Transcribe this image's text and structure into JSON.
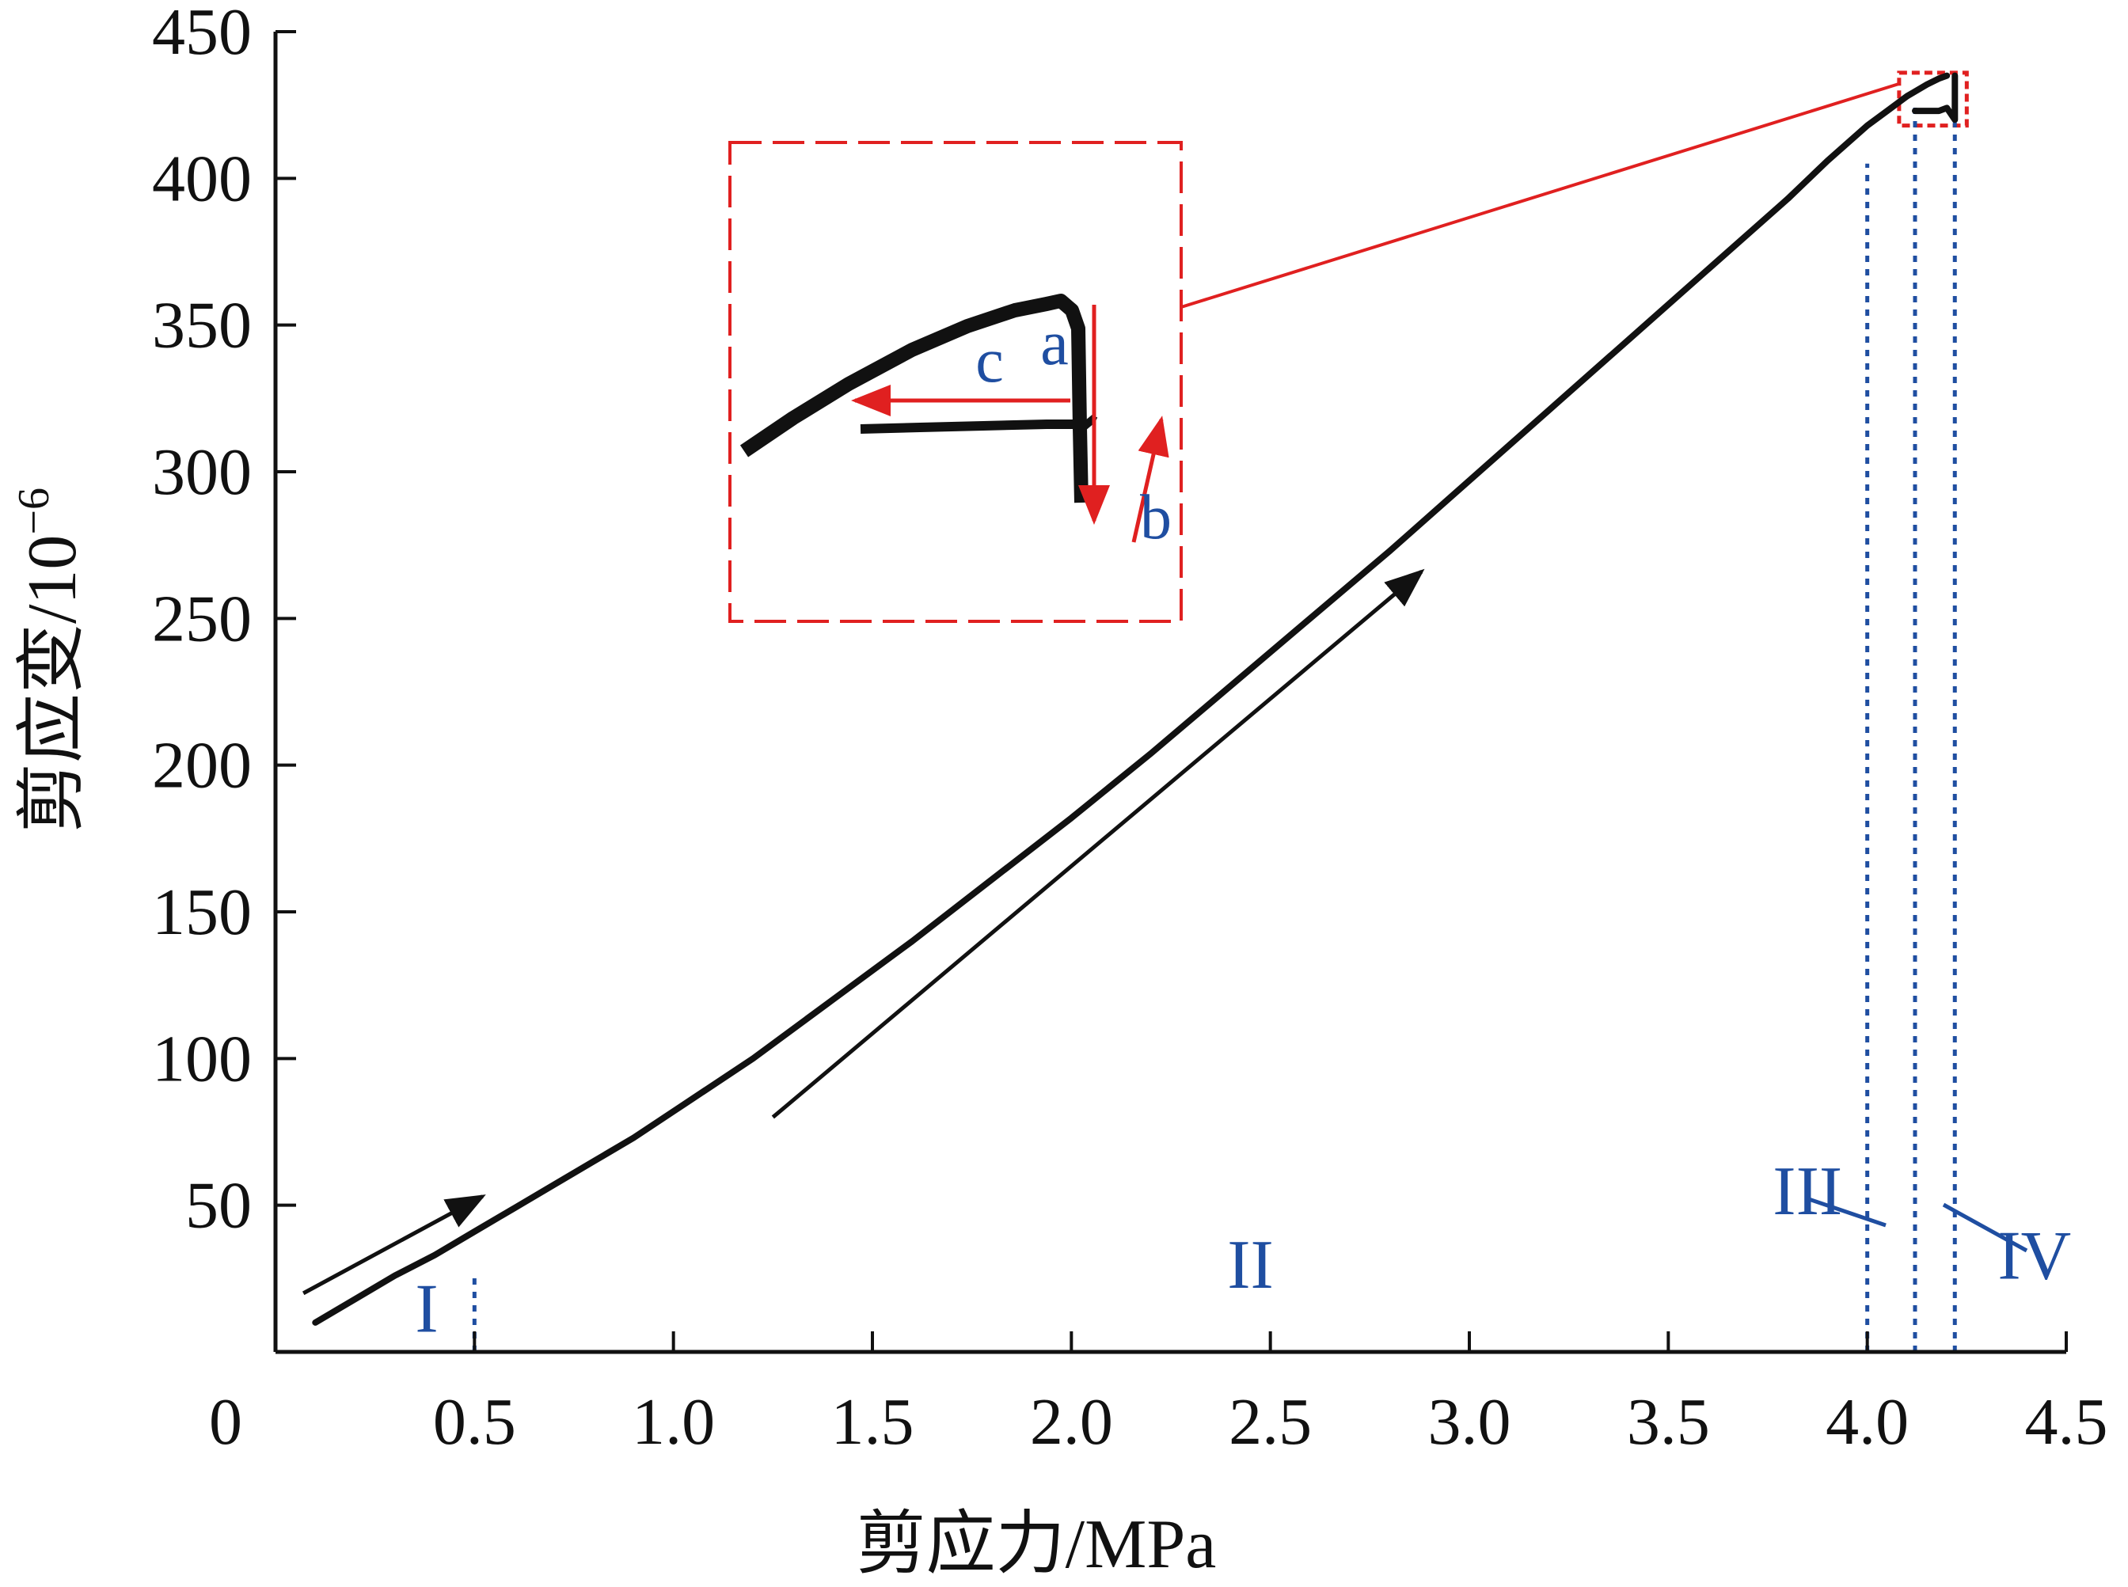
{
  "chart_data": {
    "type": "line",
    "title": "",
    "xlabel": "剪应力/MPa",
    "ylabel": "剪应变/10",
    "ylabel_superscript": "−6",
    "xlim": [
      0,
      4.5
    ],
    "ylim": [
      0,
      450
    ],
    "x_ticks": [
      {
        "value": 0,
        "label": "0"
      },
      {
        "value": 0.5,
        "label": "0.5"
      },
      {
        "value": 1.0,
        "label": "1.0"
      },
      {
        "value": 1.5,
        "label": "1.5"
      },
      {
        "value": 2.0,
        "label": "2.0"
      },
      {
        "value": 2.5,
        "label": "2.5"
      },
      {
        "value": 3.0,
        "label": "3.0"
      },
      {
        "value": 3.5,
        "label": "3.5"
      },
      {
        "value": 4.0,
        "label": "4.0"
      },
      {
        "value": 4.5,
        "label": "4.5"
      }
    ],
    "y_ticks": [
      {
        "value": 50,
        "label": "50"
      },
      {
        "value": 100,
        "label": "100"
      },
      {
        "value": 150,
        "label": "150"
      },
      {
        "value": 200,
        "label": "200"
      },
      {
        "value": 250,
        "label": "250"
      },
      {
        "value": 300,
        "label": "300"
      },
      {
        "value": 350,
        "label": "350"
      },
      {
        "value": 400,
        "label": "400"
      },
      {
        "value": 450,
        "label": "450"
      }
    ],
    "grid": false,
    "legend": "none",
    "colors": {
      "curve": "#111111",
      "annotation": "#e02020",
      "region": "#1f4ea1",
      "arrow": "#111111"
    },
    "series": [
      {
        "x": [
          0.1,
          0.2,
          0.3,
          0.4,
          0.5,
          0.6,
          0.7,
          0.8,
          0.9,
          1.0,
          1.2,
          1.4,
          1.6,
          1.8,
          2.0,
          2.2,
          2.4,
          2.6,
          2.8,
          3.0,
          3.2,
          3.4,
          3.6,
          3.8,
          3.9,
          4.0,
          4.05,
          4.1,
          4.15,
          4.18,
          4.2
        ],
        "y": [
          10,
          18,
          26,
          33,
          41,
          49,
          57,
          65,
          73,
          82,
          100,
          120,
          140,
          161,
          182,
          204,
          227,
          250,
          273,
          297,
          321,
          345,
          369,
          393,
          406,
          418,
          423,
          428,
          432,
          434,
          435
        ]
      },
      {
        "x": [
          4.22,
          4.22,
          4.2,
          4.18,
          4.16,
          4.14,
          4.12
        ],
        "y": [
          435,
          420,
          424,
          423,
          423,
          423,
          423
        ]
      }
    ],
    "boundaries": [
      {
        "x": 0.5,
        "label": "I"
      },
      {
        "x": 4.0,
        "label": "III"
      },
      {
        "x": 4.12,
        "label": "IV"
      },
      {
        "x": 4.22,
        "label": ""
      }
    ],
    "regions": [
      {
        "label": "I",
        "x": 0.38,
        "y": 15
      },
      {
        "label": "II",
        "x": 2.45,
        "y": 30
      },
      {
        "label": "III",
        "x": 3.85,
        "y": 55
      },
      {
        "label": "IV",
        "x": 4.42,
        "y": 33
      }
    ],
    "direction_arrows": [
      {
        "from": [
          0.07,
          20
        ],
        "to": [
          0.52,
          53
        ]
      },
      {
        "from": [
          1.25,
          80
        ],
        "to": [
          2.88,
          266
        ]
      }
    ],
    "inset": {
      "labels": [
        "a",
        "b",
        "c"
      ],
      "zoom_box": {
        "x": [
          4.08,
          4.25
        ],
        "y": [
          418,
          436
        ]
      }
    }
  }
}
